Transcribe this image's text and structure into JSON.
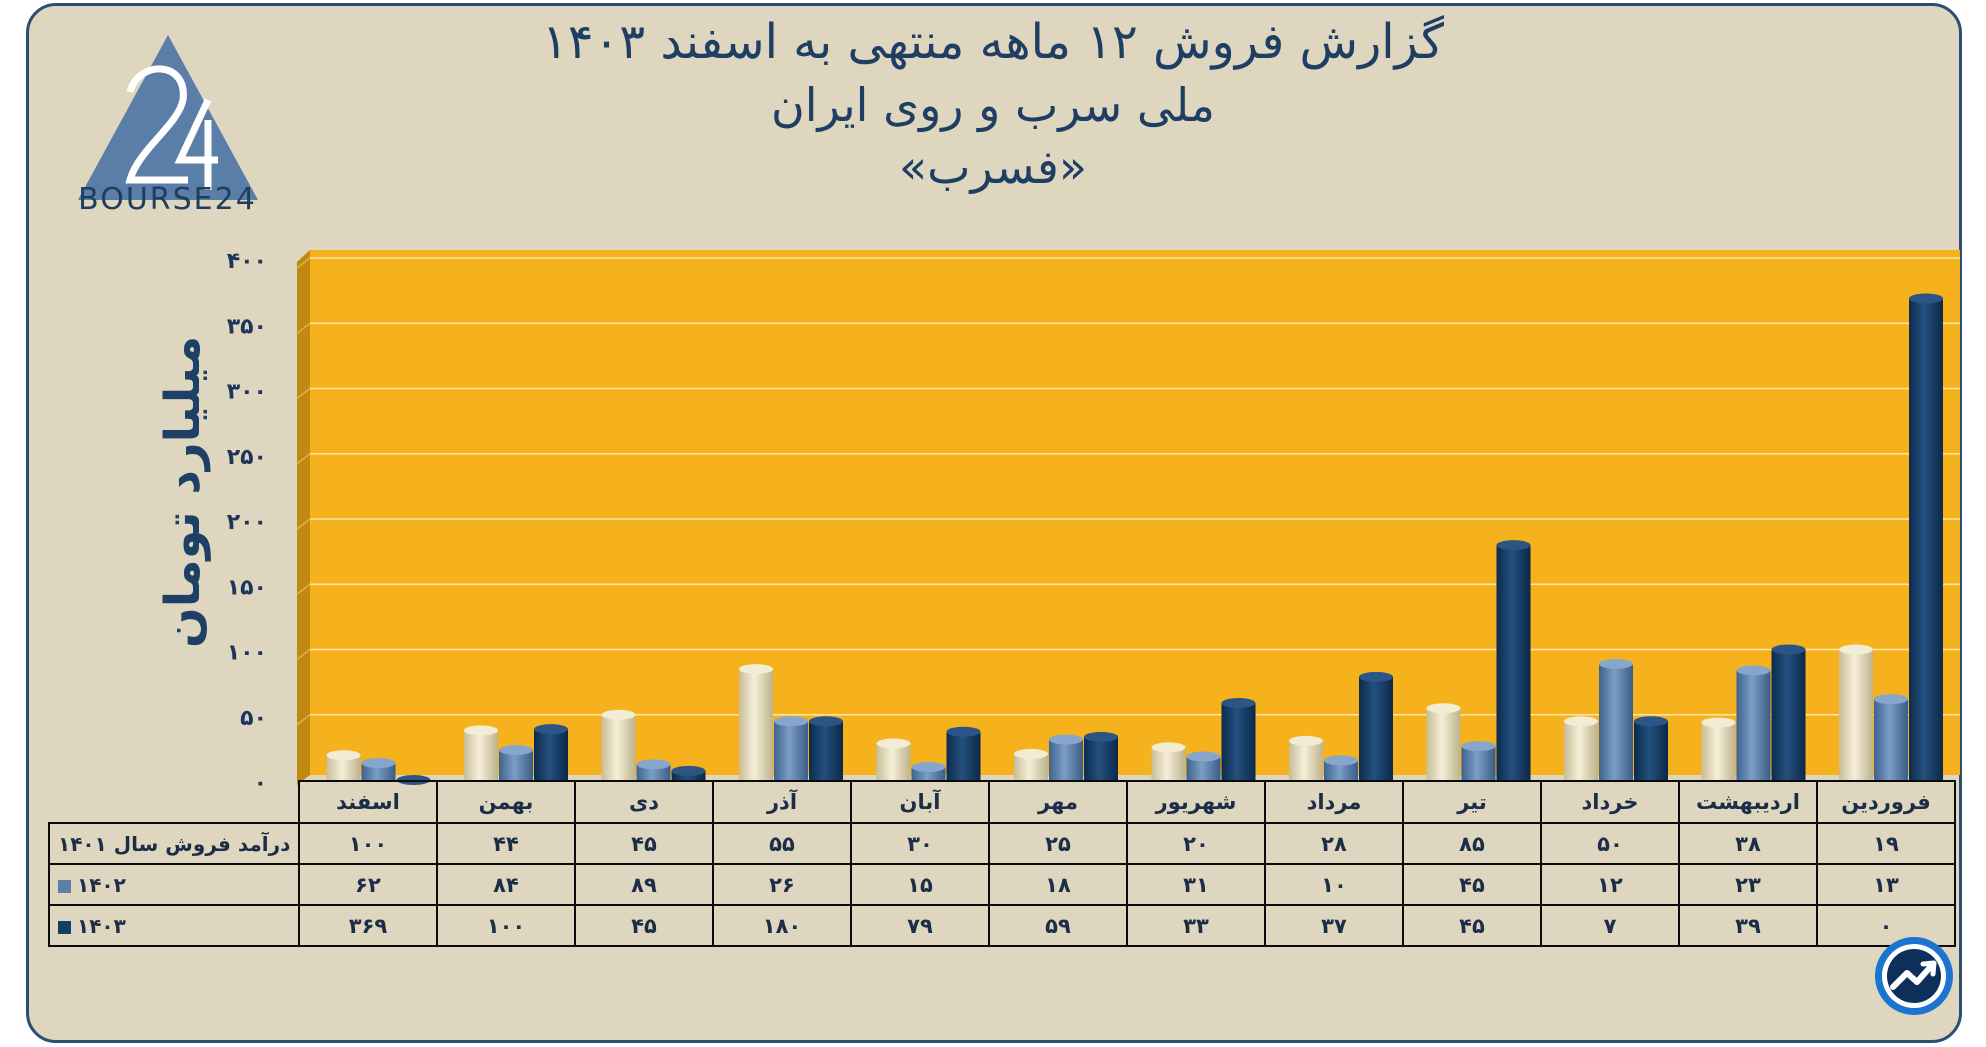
{
  "header": {
    "title_line1": "گزارش  فروش ۱۲ ماهه منتهی به اسفند ۱۴۰۳",
    "title_line2": "ملی سرب و روی ایران",
    "title_line3": "«فسرب»"
  },
  "logo": {
    "text": "BOURSE24",
    "icon": "bourse24-logo-icon"
  },
  "badge": {
    "icon": "trend-chart-icon"
  },
  "colors": {
    "plot_background": "#f6b21c",
    "panel_background": "#ded6be",
    "series_1401": "#e5dcbc",
    "series_1402": "#5b7fa9",
    "series_1403": "#163d66",
    "text": "#1e3e63"
  },
  "chart_data": {
    "type": "bar",
    "categories": [
      "اسفند",
      "بهمن",
      "دی",
      "آذر",
      "آبان",
      "مهر",
      "شهریور",
      "مرداد",
      "تیر",
      "خرداد",
      "اردیبهشت",
      "فروردین"
    ],
    "series": [
      {
        "name": "درآمد فروش سال ۱۴۰۱",
        "values": [
          100,
          44,
          45,
          55,
          30,
          25,
          20,
          28,
          85,
          50,
          38,
          19
        ]
      },
      {
        "name": "۱۴۰۲",
        "values": [
          62,
          84,
          89,
          26,
          15,
          18,
          31,
          10,
          45,
          12,
          23,
          13
        ]
      },
      {
        "name": "۱۴۰۳",
        "values": [
          369,
          100,
          45,
          180,
          79,
          59,
          33,
          37,
          45,
          7,
          39,
          0
        ]
      }
    ],
    "ylabel": "میلیارد تومان",
    "ylim": [
      0,
      400
    ],
    "yticks": [
      0,
      50,
      100,
      150,
      200,
      250,
      300,
      350,
      400
    ],
    "ytick_labels": [
      "۰",
      "۵۰",
      "۱۰۰",
      "۱۵۰",
      "۲۰۰",
      "۲۵۰",
      "۳۰۰",
      "۳۵۰",
      "۴۰۰"
    ],
    "grid": true,
    "data_table": {
      "row_labels": [
        "درآمد فروش سال ۱۴۰۱",
        "۱۴۰۲",
        "۱۴۰۳"
      ],
      "rows": [
        [
          "۱۰۰",
          "۴۴",
          "۴۵",
          "۵۵",
          "۳۰",
          "۲۵",
          "۲۰",
          "۲۸",
          "۸۵",
          "۵۰",
          "۳۸",
          "۱۹"
        ],
        [
          "۶۲",
          "۸۴",
          "۸۹",
          "۲۶",
          "۱۵",
          "۱۸",
          "۳۱",
          "۱۰",
          "۴۵",
          "۱۲",
          "۲۳",
          "۱۳"
        ],
        [
          "۳۶۹",
          "۱۰۰",
          "۴۵",
          "۱۸۰",
          "۷۹",
          "۵۹",
          "۳۳",
          "۳۷",
          "۴۵",
          "۷",
          "۳۹",
          "۰"
        ]
      ]
    }
  }
}
